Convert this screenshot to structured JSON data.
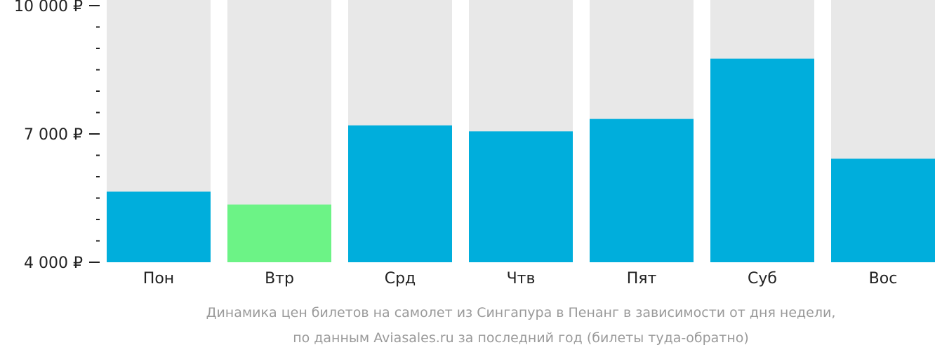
{
  "chart_data": {
    "type": "bar",
    "categories": [
      "Пон",
      "Втр",
      "Срд",
      "Чтв",
      "Пят",
      "Суб",
      "Вос"
    ],
    "values": [
      5650,
      5350,
      7200,
      7060,
      7350,
      8760,
      6420
    ],
    "ylim": [
      4000,
      10000
    ],
    "major_ticks": [
      {
        "value": 10000,
        "label": "10 000 ₽"
      },
      {
        "value": 7000,
        "label": "7 000 ₽"
      },
      {
        "value": 4000,
        "label": "4 000 ₽"
      }
    ],
    "minor_tick_step": 500,
    "highlight_index": 1,
    "colors": {
      "bar": "#00aedc",
      "highlight": "#6cf386",
      "background_column": "#e8e8e8",
      "axis": "#222222",
      "caption": "#9a9a9a"
    },
    "caption_lines": [
      "Динамика цен билетов на самолет из Сингапура в Пенанг в зависимости от дня недели,",
      "по данным Aviasales.ru за последний год (билеты туда-обратно)"
    ]
  }
}
